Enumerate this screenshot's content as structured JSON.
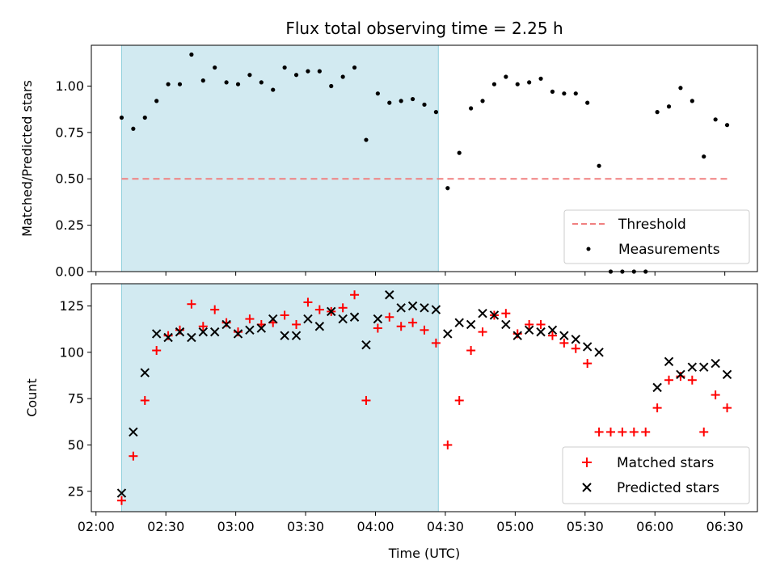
{
  "chart_data": [
    {
      "type": "scatter",
      "title": "Flux total observing time = 2.25 h",
      "xlabel": "",
      "ylabel": "Matched/Predicted stars",
      "ylim": [
        0.0,
        1.22
      ],
      "yticks": [
        "0.00",
        "0.25",
        "0.50",
        "0.75",
        "1.00"
      ],
      "threshold": {
        "name": "Threshold",
        "value": 0.5,
        "x_range": [
          "02:11",
          "06:31"
        ]
      },
      "highlight_span": [
        "02:11",
        "04:27"
      ],
      "legend_position": "lower right",
      "series": [
        {
          "name": "Measurements",
          "points": [
            [
              "02:11",
              0.83
            ],
            [
              "02:16",
              0.77
            ],
            [
              "02:21",
              0.83
            ],
            [
              "02:26",
              0.92
            ],
            [
              "02:31",
              1.01
            ],
            [
              "02:36",
              1.01
            ],
            [
              "02:41",
              1.17
            ],
            [
              "02:46",
              1.03
            ],
            [
              "02:51",
              1.1
            ],
            [
              "02:56",
              1.02
            ],
            [
              "03:01",
              1.01
            ],
            [
              "03:06",
              1.06
            ],
            [
              "03:11",
              1.02
            ],
            [
              "03:16",
              0.98
            ],
            [
              "03:21",
              1.1
            ],
            [
              "03:26",
              1.06
            ],
            [
              "03:31",
              1.08
            ],
            [
              "03:36",
              1.08
            ],
            [
              "03:41",
              1.0
            ],
            [
              "03:46",
              1.05
            ],
            [
              "03:51",
              1.1
            ],
            [
              "03:56",
              0.71
            ],
            [
              "04:01",
              0.96
            ],
            [
              "04:06",
              0.91
            ],
            [
              "04:11",
              0.92
            ],
            [
              "04:16",
              0.93
            ],
            [
              "04:21",
              0.9
            ],
            [
              "04:26",
              0.86
            ],
            [
              "04:31",
              0.45
            ],
            [
              "04:36",
              0.64
            ],
            [
              "04:41",
              0.88
            ],
            [
              "04:46",
              0.92
            ],
            [
              "04:51",
              1.01
            ],
            [
              "04:56",
              1.05
            ],
            [
              "05:01",
              1.01
            ],
            [
              "05:06",
              1.02
            ],
            [
              "05:11",
              1.04
            ],
            [
              "05:16",
              0.97
            ],
            [
              "05:21",
              0.96
            ],
            [
              "05:26",
              0.96
            ],
            [
              "05:31",
              0.91
            ],
            [
              "05:36",
              0.57
            ],
            [
              "05:41",
              0.0
            ],
            [
              "05:46",
              0.0
            ],
            [
              "05:51",
              0.0
            ],
            [
              "05:56",
              0.0
            ],
            [
              "06:01",
              0.86
            ],
            [
              "06:06",
              0.89
            ],
            [
              "06:11",
              0.99
            ],
            [
              "06:16",
              0.92
            ],
            [
              "06:21",
              0.62
            ],
            [
              "06:26",
              0.82
            ],
            [
              "06:31",
              0.79
            ]
          ]
        }
      ]
    },
    {
      "type": "scatter",
      "title": "",
      "xlabel": "Time (UTC)",
      "ylabel": "Count",
      "ylim": [
        14,
        137
      ],
      "yticks": [
        "25",
        "50",
        "75",
        "100",
        "125"
      ],
      "xlim": [
        "01:58",
        "06:44"
      ],
      "xticks": [
        "02:00",
        "02:30",
        "03:00",
        "03:30",
        "04:00",
        "04:30",
        "05:00",
        "05:30",
        "06:00",
        "06:30"
      ],
      "highlight_span": [
        "02:11",
        "04:27"
      ],
      "legend_position": "lower right",
      "series": [
        {
          "name": "Matched stars",
          "points": [
            [
              "02:11",
              20
            ],
            [
              "02:16",
              44
            ],
            [
              "02:21",
              74
            ],
            [
              "02:26",
              101
            ],
            [
              "02:31",
              109
            ],
            [
              "02:36",
              112
            ],
            [
              "02:41",
              126
            ],
            [
              "02:46",
              114
            ],
            [
              "02:51",
              123
            ],
            [
              "02:56",
              116
            ],
            [
              "03:01",
              111
            ],
            [
              "03:06",
              118
            ],
            [
              "03:11",
              115
            ],
            [
              "03:16",
              116
            ],
            [
              "03:21",
              120
            ],
            [
              "03:26",
              115
            ],
            [
              "03:31",
              127
            ],
            [
              "03:36",
              123
            ],
            [
              "03:41",
              122
            ],
            [
              "03:46",
              124
            ],
            [
              "03:51",
              131
            ],
            [
              "03:56",
              74
            ],
            [
              "04:01",
              113
            ],
            [
              "04:06",
              119
            ],
            [
              "04:11",
              114
            ],
            [
              "04:16",
              116
            ],
            [
              "04:21",
              112
            ],
            [
              "04:26",
              105
            ],
            [
              "04:31",
              50
            ],
            [
              "04:36",
              74
            ],
            [
              "04:41",
              101
            ],
            [
              "04:46",
              111
            ],
            [
              "04:51",
              120
            ],
            [
              "04:56",
              121
            ],
            [
              "05:01",
              110
            ],
            [
              "05:06",
              115
            ],
            [
              "05:11",
              115
            ],
            [
              "05:16",
              109
            ],
            [
              "05:21",
              105
            ],
            [
              "05:26",
              102
            ],
            [
              "05:31",
              94
            ],
            [
              "05:36",
              57
            ],
            [
              "05:41",
              57
            ],
            [
              "05:46",
              57
            ],
            [
              "05:51",
              57
            ],
            [
              "05:56",
              57
            ],
            [
              "06:01",
              70
            ],
            [
              "06:06",
              85
            ],
            [
              "06:11",
              87
            ],
            [
              "06:16",
              85
            ],
            [
              "06:21",
              57
            ],
            [
              "06:26",
              77
            ],
            [
              "06:31",
              70
            ]
          ]
        },
        {
          "name": "Predicted stars",
          "points": [
            [
              "02:11",
              24
            ],
            [
              "02:16",
              57
            ],
            [
              "02:21",
              89
            ],
            [
              "02:26",
              110
            ],
            [
              "02:31",
              108
            ],
            [
              "02:36",
              111
            ],
            [
              "02:41",
              108
            ],
            [
              "02:46",
              111
            ],
            [
              "02:51",
              111
            ],
            [
              "02:56",
              115
            ],
            [
              "03:01",
              110
            ],
            [
              "03:06",
              112
            ],
            [
              "03:11",
              113
            ],
            [
              "03:16",
              118
            ],
            [
              "03:21",
              109
            ],
            [
              "03:26",
              109
            ],
            [
              "03:31",
              118
            ],
            [
              "03:36",
              114
            ],
            [
              "03:41",
              122
            ],
            [
              "03:46",
              118
            ],
            [
              "03:51",
              119
            ],
            [
              "03:56",
              104
            ],
            [
              "04:01",
              118
            ],
            [
              "04:06",
              131
            ],
            [
              "04:11",
              124
            ],
            [
              "04:16",
              125
            ],
            [
              "04:21",
              124
            ],
            [
              "04:26",
              123
            ],
            [
              "04:31",
              110
            ],
            [
              "04:36",
              116
            ],
            [
              "04:41",
              115
            ],
            [
              "04:46",
              121
            ],
            [
              "04:51",
              120
            ],
            [
              "04:56",
              115
            ],
            [
              "05:01",
              109
            ],
            [
              "05:06",
              112
            ],
            [
              "05:11",
              111
            ],
            [
              "05:16",
              112
            ],
            [
              "05:21",
              109
            ],
            [
              "05:26",
              107
            ],
            [
              "05:31",
              103
            ],
            [
              "05:36",
              100
            ],
            [
              "06:01",
              81
            ],
            [
              "06:06",
              95
            ],
            [
              "06:11",
              88
            ],
            [
              "06:16",
              92
            ],
            [
              "06:21",
              92
            ],
            [
              "06:26",
              94
            ],
            [
              "06:31",
              88
            ]
          ]
        }
      ]
    }
  ],
  "colors": {
    "span_fill": "#add8e6",
    "threshold_line": "#f08080",
    "matched": "#ff0000",
    "predicted": "#000000",
    "measurement": "#000000"
  }
}
